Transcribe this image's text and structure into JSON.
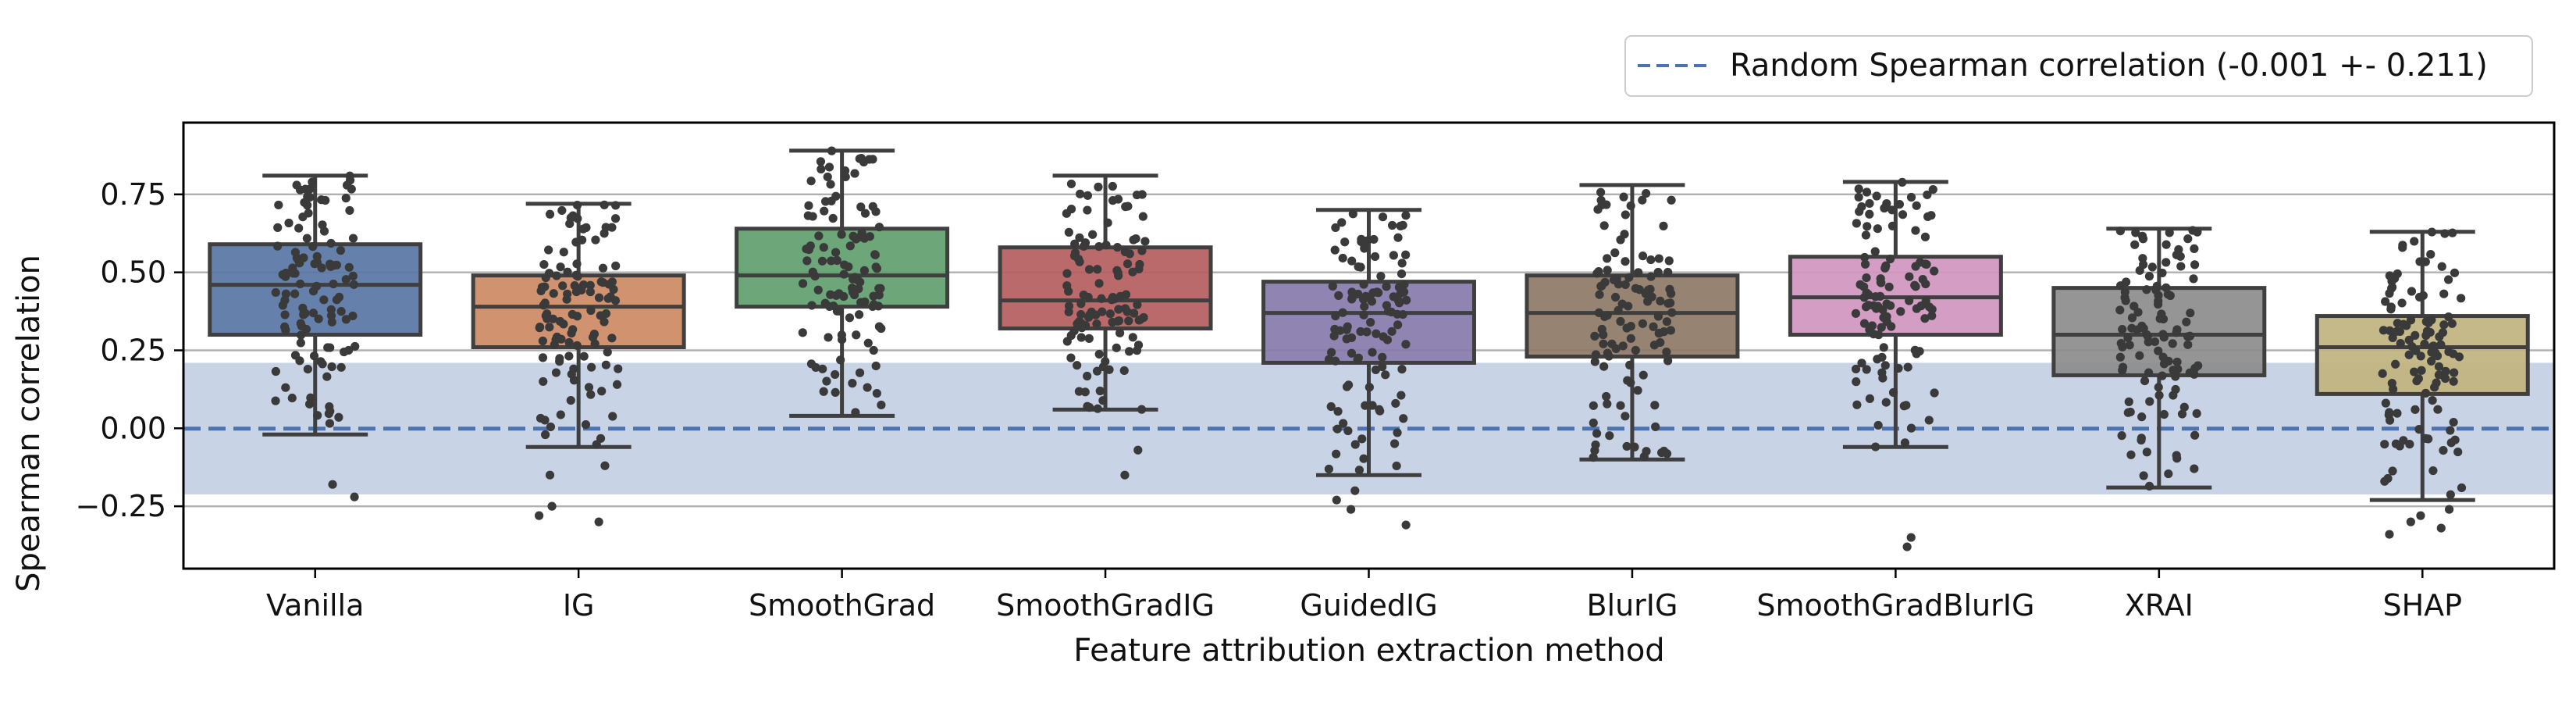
{
  "chart_data": {
    "type": "box",
    "xlabel": "Feature attribution extraction method",
    "ylabel": "Spearman correlation",
    "ylim": [
      -0.45,
      0.98
    ],
    "yticks": [
      -0.25,
      0.0,
      0.25,
      0.5,
      0.75
    ],
    "ytick_labels": [
      "−0.25",
      "0.00",
      "0.25",
      "0.50",
      "0.75"
    ],
    "grid": "horizontal",
    "legend": {
      "placement": "top-right, above plot",
      "label": "Random Spearman correlation (-0.001 +- 0.211)",
      "style": "dashed line"
    },
    "reference": {
      "mean": -0.001,
      "band": [
        -0.212,
        0.21
      ],
      "line_color": "#4c72b0",
      "band_color": "#c9d3e6"
    },
    "categories": [
      "Vanilla",
      "IG",
      "SmoothGrad",
      "SmoothGradIG",
      "GuidedIG",
      "BlurIG",
      "SmoothGradBlurIG",
      "XRAI",
      "SHAP"
    ],
    "colors": [
      "#5875a4",
      "#cc8963",
      "#5f9e6e",
      "#b55d60",
      "#857aab",
      "#8d7866",
      "#d095bf",
      "#8c8c8c",
      "#c1b37f"
    ],
    "boxes": [
      {
        "whisker_low": -0.02,
        "q1": 0.3,
        "median": 0.46,
        "q3": 0.59,
        "whisker_high": 0.81,
        "outliers": [
          -0.18,
          -0.22
        ]
      },
      {
        "whisker_low": -0.06,
        "q1": 0.26,
        "median": 0.39,
        "q3": 0.49,
        "whisker_high": 0.72,
        "outliers": [
          -0.15,
          -0.12,
          -0.25,
          -0.28,
          -0.3
        ]
      },
      {
        "whisker_low": 0.04,
        "q1": 0.39,
        "median": 0.49,
        "q3": 0.64,
        "whisker_high": 0.89,
        "outliers": []
      },
      {
        "whisker_low": 0.06,
        "q1": 0.32,
        "median": 0.41,
        "q3": 0.58,
        "whisker_high": 0.81,
        "outliers": [
          -0.07,
          -0.15
        ]
      },
      {
        "whisker_low": -0.15,
        "q1": 0.21,
        "median": 0.37,
        "q3": 0.47,
        "whisker_high": 0.7,
        "outliers": [
          -0.2,
          -0.23,
          -0.26,
          -0.31
        ]
      },
      {
        "whisker_low": -0.1,
        "q1": 0.23,
        "median": 0.37,
        "q3": 0.49,
        "whisker_high": 0.78,
        "outliers": []
      },
      {
        "whisker_low": -0.06,
        "q1": 0.3,
        "median": 0.42,
        "q3": 0.55,
        "whisker_high": 0.79,
        "outliers": [
          -0.35,
          -0.38
        ]
      },
      {
        "whisker_low": -0.19,
        "q1": 0.17,
        "median": 0.3,
        "q3": 0.45,
        "whisker_high": 0.64,
        "outliers": []
      },
      {
        "whisker_low": -0.23,
        "q1": 0.11,
        "median": 0.26,
        "q3": 0.36,
        "whisker_high": 0.63,
        "outliers": [
          -0.26,
          -0.28,
          -0.3,
          -0.32,
          -0.34
        ]
      }
    ]
  }
}
